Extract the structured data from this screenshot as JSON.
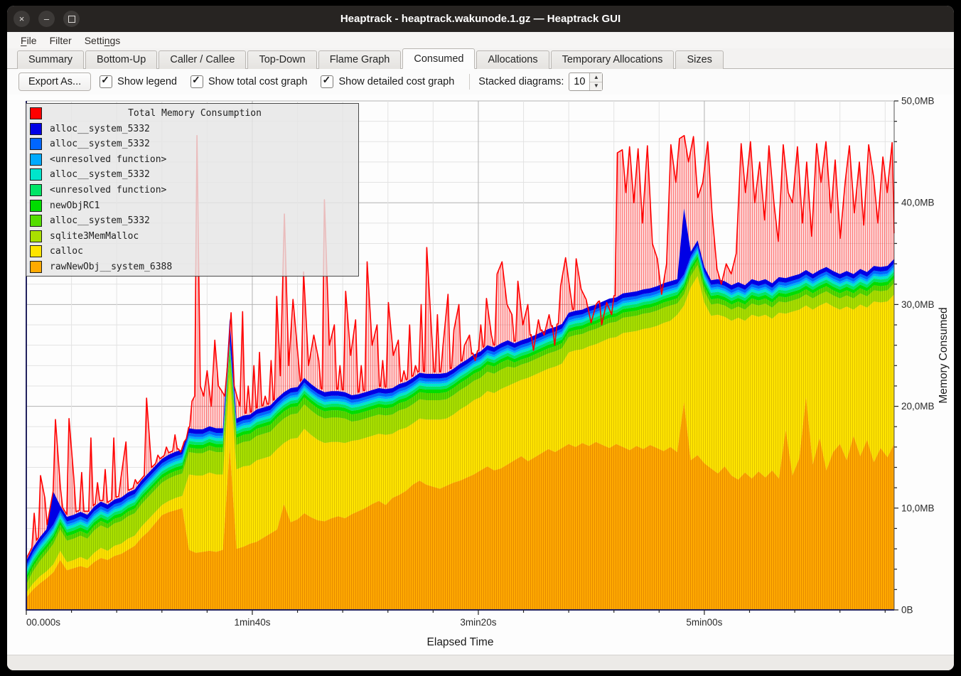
{
  "window": {
    "title": "Heaptrack - heaptrack.wakunode.1.gz — Heaptrack GUI",
    "controls": {
      "close": "×",
      "minimize": "–",
      "maximize": ""
    }
  },
  "menu": {
    "items": [
      {
        "label": "File",
        "accel_index": 0
      },
      {
        "label": "Filter",
        "accel_index": -1
      },
      {
        "label": "Settings",
        "accel_index": 5
      }
    ]
  },
  "tabs": {
    "active": "Consumed",
    "items": [
      "Summary",
      "Bottom-Up",
      "Caller / Callee",
      "Top-Down",
      "Flame Graph",
      "Consumed",
      "Allocations",
      "Temporary Allocations",
      "Sizes"
    ]
  },
  "toolbar": {
    "export_label": "Export As...",
    "checkboxes": [
      {
        "label": "Show legend",
        "checked": true
      },
      {
        "label": "Show total cost graph",
        "checked": true
      },
      {
        "label": "Show detailed cost graph",
        "checked": true
      }
    ],
    "stacked_label": "Stacked diagrams:",
    "stacked_value": "10"
  },
  "statusbar": {
    "text": ""
  },
  "chart_data": {
    "type": "area",
    "stacked": true,
    "title": "Total Memory Consumption",
    "total_color": "#ff0000",
    "xlabel": "Elapsed Time",
    "ylabel": "Memory Consumed",
    "x_range": [
      0,
      384
    ],
    "y_range": [
      0,
      50
    ],
    "x_minor_step": 20,
    "y_minor_step": 2,
    "x_ticks": [
      {
        "t": 0,
        "label": "00.000s"
      },
      {
        "t": 100,
        "label": "1min40s"
      },
      {
        "t": 200,
        "label": "3min20s"
      },
      {
        "t": 300,
        "label": "5min00s"
      }
    ],
    "y_ticks": [
      {
        "v": 0,
        "label": "0B"
      },
      {
        "v": 10,
        "label": "10,0MB"
      },
      {
        "v": 20,
        "label": "20,0MB"
      },
      {
        "v": 30,
        "label": "30,0MB"
      },
      {
        "v": 40,
        "label": "40,0MB"
      },
      {
        "v": 50,
        "label": "50,0MB"
      }
    ],
    "t_step": 3,
    "t_count": 129,
    "series": [
      {
        "name": "rawNewObj__system_6388",
        "color": "#ffaa00",
        "stripe": "#e68a00",
        "values": [
          1.2,
          2.0,
          2.6,
          3.1,
          3.7,
          4.9,
          3.9,
          4.1,
          4.3,
          4.1,
          4.7,
          5.1,
          4.9,
          5.3,
          5.5,
          5.9,
          6.3,
          7.1,
          7.7,
          8.5,
          9.3,
          9.6,
          9.8,
          10.0,
          5.9,
          5.6,
          5.7,
          5.8,
          5.7,
          5.9,
          16.0,
          6.0,
          6.2,
          6.5,
          6.7,
          7.1,
          7.5,
          7.9,
          10.4,
          8.6,
          8.9,
          9.5,
          9.1,
          8.8,
          8.7,
          9.0,
          9.2,
          9.0,
          9.4,
          9.7,
          10.0,
          10.4,
          10.7,
          10.3,
          11.0,
          11.3,
          11.7,
          12.3,
          12.7,
          12.3,
          12.1,
          11.9,
          12.2,
          12.5,
          12.7,
          13.0,
          13.3,
          13.7,
          14.1,
          13.7,
          13.9,
          14.3,
          14.7,
          15.1,
          14.6,
          15.0,
          15.4,
          15.8,
          15.5,
          15.9,
          16.3,
          16.0,
          16.4,
          16.1,
          16.5,
          16.2,
          15.9,
          16.3,
          16.0,
          15.7,
          16.1,
          15.8,
          16.2,
          15.9,
          15.6,
          16.0,
          15.5,
          20.4,
          14.7,
          15.2,
          14.4,
          13.9,
          13.4,
          14.1,
          13.2,
          12.8,
          13.5,
          12.9,
          13.6,
          13.0,
          13.7,
          12.9,
          17.7,
          13.2,
          14.9,
          20.9,
          14.3,
          16.9,
          13.7,
          15.5,
          16.3,
          14.7,
          17.1,
          15.1,
          16.7,
          14.5,
          15.9,
          15.0,
          16.3
        ]
      },
      {
        "name": "calloc",
        "color": "#ffe500",
        "stripe": "#e0c200",
        "values": [
          0.5,
          0.6,
          0.7,
          0.7,
          0.8,
          0.9,
          0.8,
          0.8,
          0.9,
          0.8,
          0.9,
          1.0,
          0.9,
          1.0,
          1.0,
          1.1,
          1.0,
          1.1,
          1.2,
          1.1,
          1.0,
          1.1,
          1.2,
          1.2,
          7.4,
          7.6,
          7.5,
          7.7,
          7.6,
          7.4,
          7.0,
          7.8,
          7.9,
          7.7,
          8.0,
          7.8,
          7.6,
          7.9,
          6.0,
          8.2,
          8.0,
          8.3,
          8.1,
          7.9,
          7.7,
          7.5,
          7.3,
          7.4,
          7.2,
          7.0,
          6.9,
          6.7,
          6.6,
          6.9,
          6.3,
          6.4,
          6.2,
          6.0,
          6.1,
          6.4,
          6.6,
          6.8,
          6.6,
          6.7,
          7.0,
          7.1,
          7.3,
          7.2,
          7.4,
          7.6,
          7.8,
          7.7,
          7.6,
          7.5,
          8.2,
          8.1,
          8.0,
          7.9,
          8.4,
          8.3,
          9.0,
          9.5,
          9.2,
          9.8,
          9.6,
          10.2,
          10.8,
          10.5,
          11.2,
          11.6,
          11.3,
          11.8,
          11.5,
          12.0,
          12.6,
          12.4,
          13.5,
          9.5,
          17.0,
          17.6,
          15.8,
          15.0,
          15.6,
          14.7,
          15.2,
          15.9,
          14.9,
          16.1,
          15.2,
          16.0,
          14.9,
          16.3,
          11.4,
          16.1,
          14.6,
          9.0,
          15.2,
          13.0,
          16.5,
          14.3,
          13.2,
          15.1,
          12.4,
          14.9,
          13.0,
          15.8,
          14.3,
          15.3,
          14.7
        ]
      },
      {
        "name": "sqlite3MemMalloc",
        "color": "#aae000",
        "stripe": "#8fc400",
        "values": {
          "rle": [
            [
              1,
              0.8
            ],
            [
              1,
              1.2
            ],
            [
              1,
              1.5
            ],
            [
              1,
              1.8
            ],
            [
              1,
              2.0
            ],
            [
              5,
              2.1
            ],
            [
              20,
              2.2
            ],
            [
              1,
              1.5
            ],
            [
              17,
              2.4
            ],
            [
              24,
              1.9
            ],
            [
              24,
              1.5
            ],
            [
              33,
              1.1
            ]
          ]
        }
      },
      {
        "name": "alloc__system_5332",
        "color": "#55dd00",
        "stripe": "#46b800",
        "values": {
          "rle": [
            [
              30,
              0.45
            ],
            [
              42,
              0.7
            ],
            [
              57,
              0.5
            ]
          ]
        }
      },
      {
        "name": "newObjRC1",
        "color": "#00dd00",
        "values": 0.35
      },
      {
        "name": "<unresolved function>",
        "color": "#00e566",
        "values": 0.3
      },
      {
        "name": "alloc__system_5332",
        "color": "#00e5cc",
        "values": 0.27
      },
      {
        "name": "<unresolved function>",
        "color": "#00aaff",
        "values": 0.22
      },
      {
        "name": "alloc__system_5332",
        "color": "#0066ff",
        "values": 0.3
      },
      {
        "name": "alloc__system_5332",
        "color": "#0000e5",
        "values": {
          "rle": [
            [
              4,
              0.45
            ],
            [
              1,
              3.2
            ],
            [
              25,
              0.45
            ],
            [
              1,
              2.0
            ],
            [
              66,
              0.45
            ],
            [
              1,
              6.5
            ],
            [
              31,
              0.45
            ]
          ]
        }
      }
    ],
    "total_spikes": [
      [
        3.5,
        9.5
      ],
      [
        6.3,
        13.2
      ],
      [
        8.2,
        11
      ],
      [
        12.9,
        18.7
      ],
      [
        15.1,
        12
      ],
      [
        18.9,
        18.8
      ],
      [
        21,
        13
      ],
      [
        24.5,
        13.5
      ],
      [
        28.6,
        16.9
      ],
      [
        31.5,
        12.5
      ],
      [
        34.9,
        13.8
      ],
      [
        38.7,
        16.9
      ],
      [
        41.9,
        13
      ],
      [
        44.1,
        16.5
      ],
      [
        48.2,
        12.8
      ],
      [
        53.2,
        20.8
      ],
      [
        55.4,
        14
      ],
      [
        58.2,
        15.2
      ],
      [
        62,
        16
      ],
      [
        65.8,
        17.2
      ],
      [
        68.3,
        15.5
      ],
      [
        70.8,
        16.8
      ],
      [
        73.3,
        20.5
      ],
      [
        74.5,
        21
      ],
      [
        75.5,
        46.6
      ],
      [
        77,
        22
      ],
      [
        78.5,
        21
      ],
      [
        80,
        23.5
      ],
      [
        81.8,
        20
      ],
      [
        83.4,
        26.5
      ],
      [
        85,
        22
      ],
      [
        86.5,
        21.5
      ],
      [
        87.8,
        21
      ],
      [
        89,
        24
      ],
      [
        90.6,
        29.2
      ],
      [
        92,
        22
      ],
      [
        93.2,
        21
      ],
      [
        94.5,
        20
      ],
      [
        95.7,
        29.3
      ],
      [
        98.2,
        22
      ],
      [
        100.7,
        24
      ],
      [
        103.2,
        25.3
      ],
      [
        105.7,
        21
      ],
      [
        108.3,
        24.5
      ],
      [
        110.8,
        30.8
      ],
      [
        112.4,
        23
      ],
      [
        114.2,
        38.9
      ],
      [
        116.1,
        24
      ],
      [
        118,
        30.5
      ],
      [
        120.2,
        25
      ],
      [
        122.7,
        33.2
      ],
      [
        124.9,
        24
      ],
      [
        127.2,
        27
      ],
      [
        129.4,
        24.5
      ],
      [
        131.9,
        40.3
      ],
      [
        134.1,
        26
      ],
      [
        136.3,
        28
      ],
      [
        138.8,
        24
      ],
      [
        141.3,
        31.3
      ],
      [
        143.5,
        25
      ],
      [
        145.7,
        28.5
      ],
      [
        148.2,
        24
      ],
      [
        150.8,
        34.2
      ],
      [
        153,
        26
      ],
      [
        155.2,
        28
      ],
      [
        157.7,
        24.5
      ],
      [
        160.2,
        30.2
      ],
      [
        162.4,
        25
      ],
      [
        164.6,
        26.5
      ],
      [
        167.1,
        23.5
      ],
      [
        169.6,
        28
      ],
      [
        172.2,
        24
      ],
      [
        174.7,
        30
      ],
      [
        177.2,
        35.6
      ],
      [
        179.4,
        27
      ],
      [
        181.9,
        29
      ],
      [
        184.4,
        26
      ],
      [
        186.6,
        31
      ],
      [
        189.2,
        27.5
      ],
      [
        191.4,
        30
      ],
      [
        193.9,
        26
      ],
      [
        196.1,
        27
      ],
      [
        198.6,
        24.5
      ],
      [
        201.1,
        28
      ],
      [
        203.6,
        30.6
      ],
      [
        205.8,
        27
      ],
      [
        208.3,
        33
      ],
      [
        210.5,
        34.2
      ],
      [
        212.7,
        30
      ],
      [
        214.9,
        29
      ],
      [
        217.5,
        32.3
      ],
      [
        219.7,
        28
      ],
      [
        221.9,
        30
      ],
      [
        224.4,
        25.5
      ],
      [
        226.6,
        28.5
      ],
      [
        229.1,
        27
      ],
      [
        231.3,
        29
      ],
      [
        233.8,
        26
      ],
      [
        236.4,
        31.8
      ],
      [
        238.6,
        34.6
      ],
      [
        240.8,
        31
      ],
      [
        243.3,
        34.5
      ],
      [
        245.5,
        31.5
      ],
      [
        247.7,
        30.5
      ],
      [
        249.9,
        28.2
      ],
      [
        252.1,
        30
      ],
      [
        254.6,
        28
      ],
      [
        256.8,
        30.2
      ],
      [
        259,
        29
      ],
      [
        261.5,
        44.9
      ],
      [
        263.7,
        45.2
      ],
      [
        265.3,
        41
      ],
      [
        266.9,
        45.5
      ],
      [
        268.8,
        40
      ],
      [
        270.7,
        45.3
      ],
      [
        272.6,
        38
      ],
      [
        274.8,
        45.6
      ],
      [
        277,
        36
      ],
      [
        279.2,
        34.5
      ],
      [
        281.1,
        31
      ],
      [
        283.3,
        34
      ],
      [
        285.2,
        45.7
      ],
      [
        287.4,
        42
      ],
      [
        289,
        46.3
      ],
      [
        291.1,
        46.6
      ],
      [
        293,
        44
      ],
      [
        295.2,
        46.5
      ],
      [
        297.1,
        40.5
      ],
      [
        299.3,
        42
      ],
      [
        301.5,
        46
      ],
      [
        303.4,
        39
      ],
      [
        305.6,
        33.5
      ],
      [
        307.5,
        32
      ],
      [
        309.7,
        34
      ],
      [
        311.9,
        33
      ],
      [
        314.1,
        35
      ],
      [
        316.3,
        45.8
      ],
      [
        318.2,
        41
      ],
      [
        320.4,
        46
      ],
      [
        322.3,
        40
      ],
      [
        324.5,
        44
      ],
      [
        326.7,
        38.3
      ],
      [
        328.6,
        45.6
      ],
      [
        330.8,
        40
      ],
      [
        332.7,
        36.2
      ],
      [
        334.9,
        45.7
      ],
      [
        337.1,
        41
      ],
      [
        339,
        40
      ],
      [
        341.2,
        45.5
      ],
      [
        343.4,
        38
      ],
      [
        345.3,
        44
      ],
      [
        347.5,
        36.7
      ],
      [
        349.7,
        45.8
      ],
      [
        351.6,
        42
      ],
      [
        353.8,
        46
      ],
      [
        356,
        39
      ],
      [
        357.9,
        44.2
      ],
      [
        360.1,
        36.5
      ],
      [
        362.3,
        42
      ],
      [
        364.2,
        45.6
      ],
      [
        366.4,
        39
      ],
      [
        368.6,
        44
      ],
      [
        370.5,
        37.8
      ],
      [
        372.7,
        45.7
      ],
      [
        374.9,
        42.5
      ],
      [
        376.8,
        38
      ],
      [
        379,
        44.5
      ],
      [
        380.9,
        41
      ],
      [
        383.1,
        45.9
      ],
      [
        384,
        37
      ]
    ]
  }
}
